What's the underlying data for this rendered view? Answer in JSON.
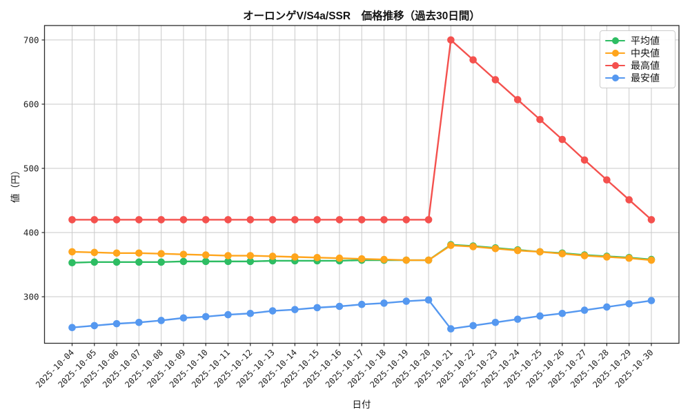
{
  "chart_data": {
    "type": "line",
    "title": "オーロンゲV/S4a/SSR　価格推移（過去30日間）",
    "xlabel": "日付",
    "ylabel": "値（円）",
    "x": [
      "2025-10-04",
      "2025-10-05",
      "2025-10-06",
      "2025-10-07",
      "2025-10-08",
      "2025-10-09",
      "2025-10-10",
      "2025-10-11",
      "2025-10-12",
      "2025-10-13",
      "2025-10-14",
      "2025-10-15",
      "2025-10-16",
      "2025-10-17",
      "2025-10-18",
      "2025-10-19",
      "2025-10-20",
      "2025-10-21",
      "2025-10-22",
      "2025-10-23",
      "2025-10-24",
      "2025-10-25",
      "2025-10-26",
      "2025-10-27",
      "2025-10-28",
      "2025-10-29",
      "2025-10-30"
    ],
    "series": [
      {
        "name": "平均値",
        "color": "#2ebd63",
        "values": [
          353,
          354,
          354,
          354,
          354,
          355,
          355,
          355,
          355,
          356,
          356,
          356,
          356,
          357,
          357,
          357,
          357,
          381,
          379,
          376,
          373,
          370,
          368,
          365,
          363,
          361,
          358
        ]
      },
      {
        "name": "中央値",
        "color": "#ffa51c",
        "values": [
          370,
          369,
          368,
          368,
          367,
          366,
          365,
          364,
          364,
          363,
          362,
          361,
          360,
          359,
          358,
          357,
          357,
          380,
          378,
          375,
          372,
          370,
          367,
          364,
          362,
          360,
          357
        ]
      },
      {
        "name": "最高値",
        "color": "#f4514e",
        "values": [
          420,
          420,
          420,
          420,
          420,
          420,
          420,
          420,
          420,
          420,
          420,
          420,
          420,
          420,
          420,
          420,
          420,
          700,
          669,
          638,
          607,
          576,
          545,
          513,
          482,
          451,
          420
        ]
      },
      {
        "name": "最安値",
        "color": "#5598f0",
        "values": [
          252,
          255,
          258,
          260,
          263,
          267,
          269,
          272,
          274,
          278,
          280,
          283,
          285,
          288,
          290,
          293,
          295,
          250,
          255,
          260,
          265,
          270,
          274,
          279,
          284,
          289,
          294
        ]
      }
    ],
    "yticks": [
      300,
      400,
      500,
      600,
      700
    ],
    "ylim": [
      227.5,
      722.5
    ],
    "grid": true,
    "legend_position": "upper right",
    "colors": {
      "grid": "#c9c9c9",
      "axis": "#2b2b2b",
      "tick_label": "#1f1f1f",
      "background": "#ffffff"
    }
  }
}
